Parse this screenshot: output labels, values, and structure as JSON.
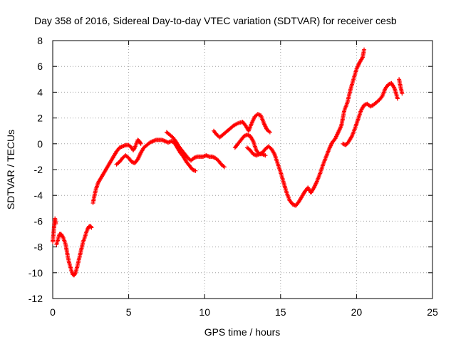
{
  "chart_data": {
    "type": "scatter",
    "title": "Day 358 of 2016, Sidereal Day-to-day VTEC variation (SDTVAR) for receiver cesb",
    "xlabel": "GPS time / hours",
    "ylabel": "SDTVAR / TECUs",
    "xlim": [
      0,
      25
    ],
    "ylim": [
      -12,
      8
    ],
    "xticks": [
      0,
      5,
      10,
      15,
      20,
      25
    ],
    "yticks": [
      -12,
      -10,
      -8,
      -6,
      -4,
      -2,
      0,
      2,
      4,
      6,
      8
    ],
    "grid": true,
    "marker": "plus",
    "series_color": "#ff0000",
    "segments": [
      {
        "x": [
          0.0,
          0.05,
          0.1,
          0.15,
          0.2
        ],
        "y": [
          -7.6,
          -7.0,
          -6.3,
          -5.8,
          -6.2
        ]
      },
      {
        "x": [
          0.25,
          0.35,
          0.45,
          0.55,
          0.7,
          0.85,
          1.0,
          1.1,
          1.2,
          1.3,
          1.4,
          1.5,
          1.6,
          1.7,
          1.8,
          1.9,
          2.0,
          2.1,
          2.2,
          2.3,
          2.4,
          2.5,
          2.55
        ],
        "y": [
          -7.8,
          -7.4,
          -7.0,
          -7.0,
          -7.3,
          -7.8,
          -8.8,
          -9.3,
          -9.7,
          -10.1,
          -10.2,
          -10.0,
          -9.6,
          -9.1,
          -8.6,
          -8.1,
          -7.6,
          -7.3,
          -6.9,
          -6.6,
          -6.4,
          -6.4,
          -6.5
        ]
      },
      {
        "x": [
          2.65,
          2.75,
          2.85,
          3.0,
          3.2,
          3.4,
          3.6,
          3.8,
          4.0,
          4.2,
          4.4,
          4.6,
          4.8,
          5.0,
          5.2,
          5.3,
          5.4,
          5.5,
          5.6,
          5.7,
          5.8
        ],
        "y": [
          -4.6,
          -4.0,
          -3.5,
          -3.0,
          -2.6,
          -2.2,
          -1.8,
          -1.4,
          -1.0,
          -0.6,
          -0.3,
          -0.2,
          -0.1,
          -0.1,
          -0.3,
          -0.5,
          -0.3,
          0.0,
          0.3,
          0.2,
          0.0
        ]
      },
      {
        "x": [
          4.2,
          4.4,
          4.6,
          4.8,
          5.0,
          5.2,
          5.4,
          5.6,
          5.8,
          6.0,
          6.2,
          6.4,
          6.6,
          6.8,
          7.0,
          7.2,
          7.4,
          7.6,
          7.8,
          8.0,
          8.2,
          8.4,
          8.6,
          8.8,
          9.0,
          9.2,
          9.4
        ],
        "y": [
          -1.6,
          -1.4,
          -1.1,
          -0.9,
          -1.1,
          -1.4,
          -1.5,
          -1.2,
          -0.7,
          -0.3,
          -0.1,
          0.1,
          0.2,
          0.3,
          0.3,
          0.3,
          0.2,
          0.1,
          0.2,
          0.1,
          -0.3,
          -0.7,
          -1.0,
          -1.4,
          -1.7,
          -2.0,
          -2.1
        ]
      },
      {
        "x": [
          7.5,
          7.7,
          7.9,
          8.1,
          8.3,
          8.5,
          8.7,
          8.9,
          9.1,
          9.3,
          9.5,
          9.7,
          9.9,
          10.1,
          10.3,
          10.5,
          10.7,
          10.9,
          11.1,
          11.3
        ],
        "y": [
          0.9,
          0.7,
          0.5,
          0.2,
          -0.2,
          -0.5,
          -0.8,
          -1.1,
          -1.3,
          -1.1,
          -1.0,
          -1.0,
          -1.0,
          -0.9,
          -1.0,
          -1.0,
          -1.1,
          -1.3,
          -1.6,
          -1.8
        ]
      },
      {
        "x": [
          10.6,
          10.8,
          11.0,
          11.3,
          11.6,
          11.9,
          12.2,
          12.5,
          12.7,
          12.9,
          13.1,
          13.3,
          13.5,
          13.7,
          13.9,
          14.1,
          14.3
        ],
        "y": [
          1.0,
          0.7,
          0.5,
          0.8,
          1.1,
          1.4,
          1.6,
          1.7,
          1.4,
          1.0,
          1.6,
          2.1,
          2.3,
          2.2,
          1.6,
          1.1,
          0.9
        ]
      },
      {
        "x": [
          12.0,
          12.2,
          12.4,
          12.6,
          12.8,
          13.0,
          13.2,
          13.4,
          13.6,
          13.8,
          14.0,
          14.2,
          14.4,
          14.6,
          14.8,
          15.0,
          15.2,
          15.4,
          15.6,
          15.8,
          16.0,
          16.2,
          16.4,
          16.6,
          16.8,
          17.0,
          17.2,
          17.4,
          17.6,
          17.8,
          18.0,
          18.2,
          18.4,
          18.6,
          18.8,
          19.0,
          19.2,
          19.4,
          19.6,
          19.8,
          20.0,
          20.2,
          20.4,
          20.5
        ],
        "y": [
          -0.3,
          0.0,
          0.3,
          0.6,
          0.7,
          0.6,
          0.2,
          -0.5,
          -0.8,
          -0.7,
          -0.4,
          -0.2,
          -0.4,
          -0.8,
          -1.5,
          -2.2,
          -3.0,
          -3.8,
          -4.4,
          -4.7,
          -4.8,
          -4.5,
          -4.1,
          -3.7,
          -3.4,
          -3.8,
          -3.4,
          -2.9,
          -2.3,
          -1.6,
          -1.0,
          -0.4,
          0.1,
          0.4,
          0.9,
          1.4,
          2.6,
          3.2,
          4.2,
          5.0,
          5.8,
          6.3,
          6.7,
          7.3
        ]
      },
      {
        "x": [
          12.8,
          13.0,
          13.2,
          13.4,
          13.6,
          13.8,
          14.0
        ],
        "y": [
          -0.3,
          -0.5,
          -0.8,
          -0.9,
          -0.8,
          -0.8,
          -0.9
        ]
      },
      {
        "x": [
          19.1,
          19.3,
          19.5,
          19.7,
          19.9,
          20.1,
          20.3,
          20.5,
          20.7,
          20.9,
          21.1,
          21.3,
          21.5,
          21.7,
          21.9,
          22.1,
          22.3,
          22.5,
          22.7
        ],
        "y": [
          0.0,
          -0.1,
          0.2,
          0.6,
          1.2,
          1.9,
          2.6,
          3.0,
          3.1,
          2.9,
          3.0,
          3.2,
          3.4,
          3.7,
          4.3,
          4.6,
          4.7,
          4.3,
          3.5
        ]
      },
      {
        "x": [
          22.8,
          22.9,
          23.0
        ],
        "y": [
          5.0,
          4.4,
          3.9
        ]
      }
    ]
  }
}
